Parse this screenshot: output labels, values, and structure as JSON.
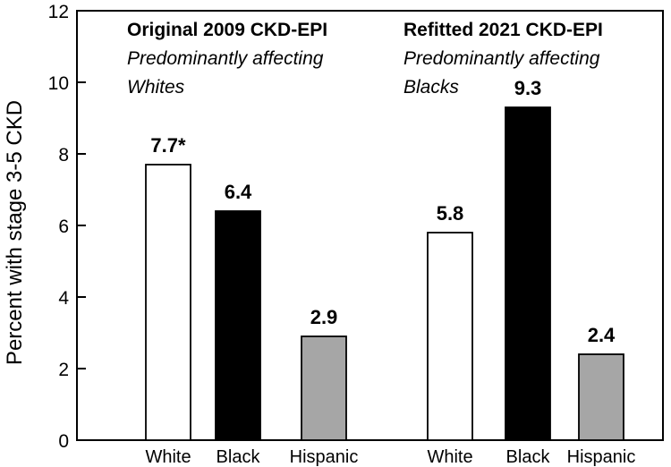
{
  "chart_data": {
    "type": "bar",
    "title": "",
    "xlabel": "",
    "ylabel": "Percent with stage 3-5 CKD",
    "ylim": [
      0,
      12
    ],
    "yticks": [
      0,
      2,
      4,
      6,
      8,
      10,
      12
    ],
    "grid": false,
    "groups": [
      {
        "title": "Original 2009 CKD-EPI",
        "subtitle_lines": [
          "Predominantly affecting",
          "Whites"
        ],
        "categories": [
          "White",
          "Black",
          "Hispanic"
        ],
        "values": [
          7.7,
          6.4,
          2.9
        ],
        "value_labels": [
          "7.7*",
          "6.4",
          "2.9"
        ]
      },
      {
        "title": "Refitted 2021 CKD-EPI",
        "subtitle_lines": [
          "Predominantly affecting",
          "Blacks"
        ],
        "categories": [
          "White",
          "Black",
          "Hispanic"
        ],
        "values": [
          5.8,
          9.3,
          2.4
        ],
        "value_labels": [
          "5.8",
          "9.3",
          "2.4"
        ]
      }
    ],
    "colors": {
      "White": "#ffffff",
      "Black": "#000000",
      "Hispanic": "#a6a6a6"
    }
  }
}
